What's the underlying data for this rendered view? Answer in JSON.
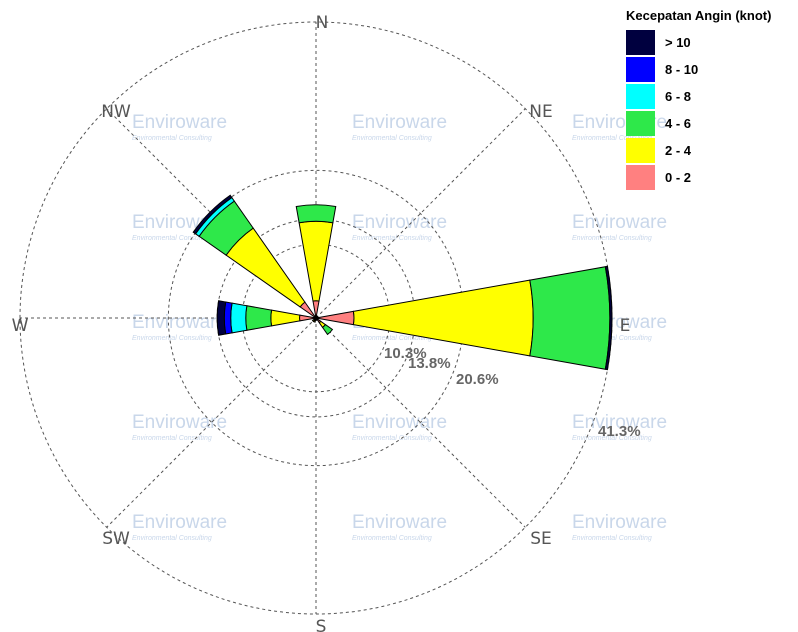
{
  "chart_data": {
    "type": "windrose",
    "legend_title": "Kecepatan Angin (knot)",
    "bins": [
      {
        "label": "> 10",
        "color": "#00003f"
      },
      {
        "label": "8 - 10",
        "color": "#0000ff"
      },
      {
        "label": "6 - 8",
        "color": "#00ffff"
      },
      {
        "label": "4 - 6",
        "color": "#2ee84a"
      },
      {
        "label": "2 - 4",
        "color": "#ffff00"
      },
      {
        "label": "0 - 2",
        "color": "#ff8080"
      }
    ],
    "directions": [
      "N",
      "NE",
      "E",
      "SE",
      "S",
      "SW",
      "W",
      "NW"
    ],
    "rings": [
      {
        "label": "10.3%",
        "value": 10.3
      },
      {
        "label": "13.8%",
        "value": 13.8
      },
      {
        "label": "20.6%",
        "value": 20.6
      },
      {
        "label": "41.3%",
        "value": 41.3
      }
    ],
    "max_value": 41.3,
    "sectors": [
      {
        "direction": "N",
        "angle": 0,
        "values": [
          0,
          0,
          0,
          2.3,
          11.1,
          2.4
        ]
      },
      {
        "direction": "NNE",
        "angle": 22.5,
        "values": [
          0,
          0,
          0,
          0,
          0,
          0.3
        ]
      },
      {
        "direction": "NE",
        "angle": 45,
        "values": [
          0,
          0,
          0,
          0,
          0,
          0.3
        ]
      },
      {
        "direction": "ENE",
        "angle": 67.5,
        "values": [
          0,
          0,
          0,
          0,
          0,
          0.3
        ]
      },
      {
        "direction": "E",
        "angle": 90,
        "values": [
          0.3,
          0,
          0,
          10.7,
          25.0,
          5.3
        ]
      },
      {
        "direction": "ESE",
        "angle": 112.5,
        "values": [
          0,
          0,
          0,
          0,
          0,
          0.3
        ]
      },
      {
        "direction": "SE",
        "angle": 135,
        "values": [
          0,
          0,
          0,
          1.2,
          0.8,
          0.8
        ]
      },
      {
        "direction": "SSE",
        "angle": 157.5,
        "values": [
          0,
          0,
          0,
          0,
          0,
          0.3
        ]
      },
      {
        "direction": "S",
        "angle": 180,
        "values": [
          0,
          0,
          0,
          0,
          0,
          0.3
        ]
      },
      {
        "direction": "SSW",
        "angle": 202.5,
        "values": [
          0,
          0,
          0,
          0,
          0.3,
          0.3
        ]
      },
      {
        "direction": "SW",
        "angle": 225,
        "values": [
          0,
          0,
          0,
          0,
          0.3,
          0.3
        ]
      },
      {
        "direction": "WSW",
        "angle": 247.5,
        "values": [
          0,
          0,
          0,
          0,
          0,
          0.3
        ]
      },
      {
        "direction": "W",
        "angle": 270,
        "values": [
          1.0,
          0.9,
          2.1,
          3.5,
          4.0,
          2.3
        ]
      },
      {
        "direction": "WNW",
        "angle": 292.5,
        "values": [
          0,
          0,
          0,
          0,
          0,
          0.3
        ]
      },
      {
        "direction": "NW",
        "angle": 315,
        "values": [
          0.4,
          0,
          0.6,
          4.6,
          12.6,
          2.7
        ]
      },
      {
        "direction": "NNW",
        "angle": 337.5,
        "values": [
          0,
          0,
          0,
          0,
          0,
          0.3
        ]
      }
    ],
    "grid": true
  },
  "watermark": {
    "title": "Enviroware",
    "subtitle": "Environmental Consulting"
  }
}
